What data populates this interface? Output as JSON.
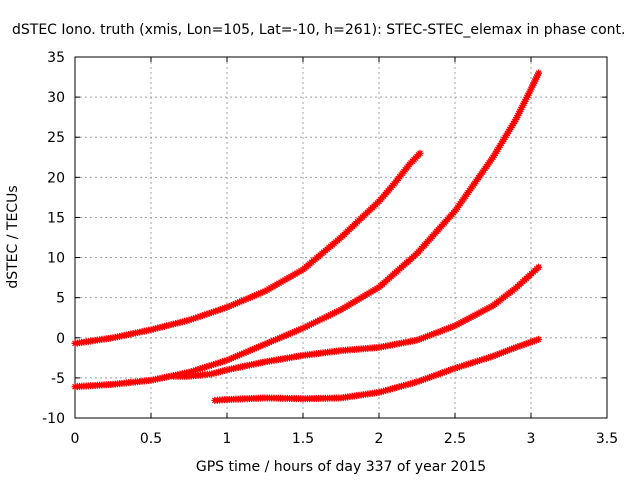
{
  "chart_data": {
    "type": "scatter",
    "title": "dSTEC Iono. truth (xmis, Lon=105, Lat=-10, h=261): STEC-STEC_elemax in phase cont.",
    "xlabel": "GPS time / hours of day 337 of year 2015",
    "ylabel": "dSTEC  / TECUs",
    "xlim": [
      0,
      3.5
    ],
    "ylim": [
      -10,
      35
    ],
    "xticks": [
      "0",
      "0.5",
      "1",
      "1.5",
      "2",
      "2.5",
      "3",
      "3.5"
    ],
    "yticks": [
      "-10",
      "-5",
      "0",
      "5",
      "10",
      "15",
      "20",
      "25",
      "30",
      "35"
    ],
    "grid": true,
    "marker": "plus-cross",
    "color": "#ff0000",
    "series": [
      {
        "x": [
          0.0,
          0.25,
          0.5,
          0.75,
          1.0,
          1.25,
          1.5,
          1.75,
          2.0,
          2.1,
          2.2,
          2.27
        ],
        "y": [
          -0.7,
          0.0,
          1.0,
          2.2,
          3.8,
          5.8,
          8.5,
          12.5,
          17.0,
          19.2,
          21.6,
          23.0
        ]
      },
      {
        "x": [
          0.0,
          0.25,
          0.5,
          0.75,
          1.0,
          1.25,
          1.5,
          1.75,
          2.0,
          2.25,
          2.5,
          2.75,
          2.9,
          3.0,
          3.05
        ],
        "y": [
          -6.1,
          -5.8,
          -5.3,
          -4.3,
          -2.8,
          -0.8,
          1.2,
          3.5,
          6.3,
          10.5,
          15.8,
          22.5,
          27.2,
          31.0,
          33.0
        ]
      },
      {
        "x": [
          0.65,
          0.75,
          0.9,
          1.0,
          1.25,
          1.5,
          1.75,
          2.0,
          2.25,
          2.5,
          2.75,
          2.9,
          3.05
        ],
        "y": [
          -4.8,
          -4.8,
          -4.5,
          -4.0,
          -3.0,
          -2.2,
          -1.6,
          -1.2,
          -0.3,
          1.5,
          4.0,
          6.2,
          8.8
        ]
      },
      {
        "x": [
          0.92,
          1.0,
          1.25,
          1.5,
          1.75,
          2.0,
          2.25,
          2.5,
          2.75,
          2.9,
          3.05
        ],
        "y": [
          -7.8,
          -7.7,
          -7.5,
          -7.6,
          -7.5,
          -6.8,
          -5.5,
          -3.8,
          -2.3,
          -1.2,
          -0.2
        ]
      }
    ]
  }
}
